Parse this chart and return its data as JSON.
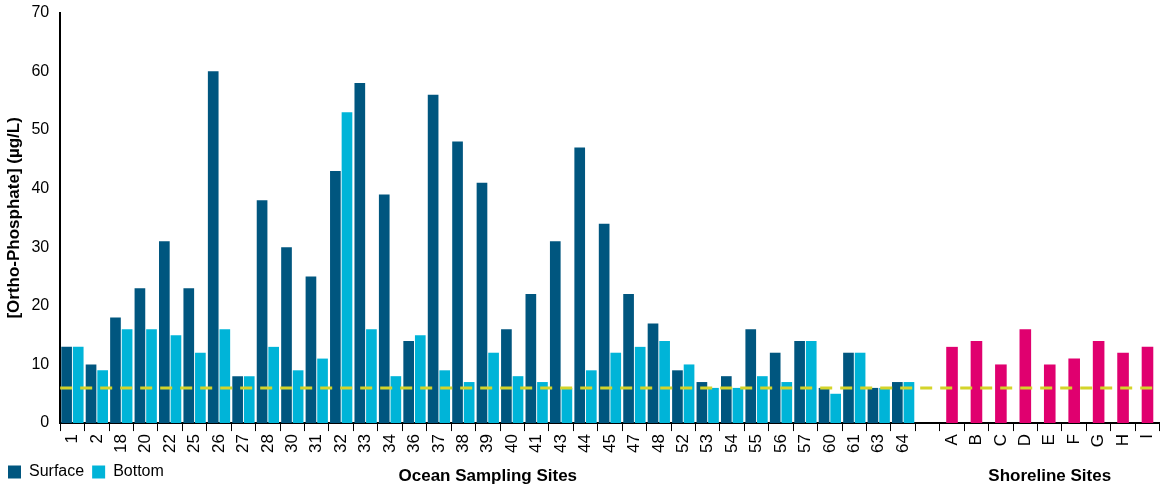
{
  "chart_data": {
    "type": "bar",
    "ylabel": "[Ortho-Phosphate] (µg/L)",
    "xlabel": "Ocean Sampling Sites",
    "annotations": [
      "Shoreline Sites"
    ],
    "categories": [
      "1",
      "2",
      "18",
      "20",
      "22",
      "25",
      "26",
      "27",
      "28",
      "30",
      "31",
      "32",
      "33",
      "34",
      "36",
      "37",
      "38",
      "39",
      "40",
      "41",
      "43",
      "44",
      "45",
      "47",
      "48",
      "52",
      "53",
      "54",
      "55",
      "56",
      "57",
      "60",
      "61",
      "63",
      "64",
      null,
      "A",
      "B",
      "C",
      "D",
      "E",
      "F",
      "G",
      "H",
      "I"
    ],
    "series": [
      {
        "name": "Surface",
        "color": "#00567f",
        "values": [
          13,
          10,
          18,
          23,
          31,
          23,
          60,
          8,
          38,
          30,
          25,
          43,
          58,
          39,
          14,
          56,
          48,
          41,
          16,
          22,
          31,
          47,
          34,
          22,
          17,
          9,
          7,
          8,
          16,
          12,
          14,
          6,
          12,
          6,
          7,
          null,
          null,
          null,
          null,
          null,
          null,
          null,
          null,
          null,
          null
        ]
      },
      {
        "name": "Bottom",
        "color": "#00b4d8",
        "values": [
          13,
          9,
          16,
          16,
          15,
          12,
          16,
          8,
          13,
          9,
          11,
          53,
          16,
          8,
          15,
          9,
          7,
          12,
          8,
          7,
          6,
          9,
          12,
          13,
          14,
          10,
          6,
          6,
          8,
          7,
          14,
          5,
          12,
          6,
          7,
          null,
          null,
          null,
          null,
          null,
          null,
          null,
          null,
          null,
          null
        ]
      },
      {
        "color": "#e0006f",
        "values": [
          null,
          null,
          null,
          null,
          null,
          null,
          null,
          null,
          null,
          null,
          null,
          null,
          null,
          null,
          null,
          null,
          null,
          null,
          null,
          null,
          null,
          null,
          null,
          null,
          null,
          null,
          null,
          null,
          null,
          null,
          null,
          null,
          null,
          null,
          null,
          null,
          13,
          14,
          10,
          16,
          10,
          11,
          14,
          12,
          13
        ]
      }
    ],
    "ylim": [
      0,
      70
    ],
    "yticks": [
      0,
      10,
      20,
      30,
      40,
      50,
      60,
      70
    ],
    "ref_lines": [
      {
        "axis": "y",
        "value": 6,
        "color": "#d4d42a",
        "line_style": "dashed"
      }
    ],
    "grid": false,
    "legend": "bottom left"
  }
}
